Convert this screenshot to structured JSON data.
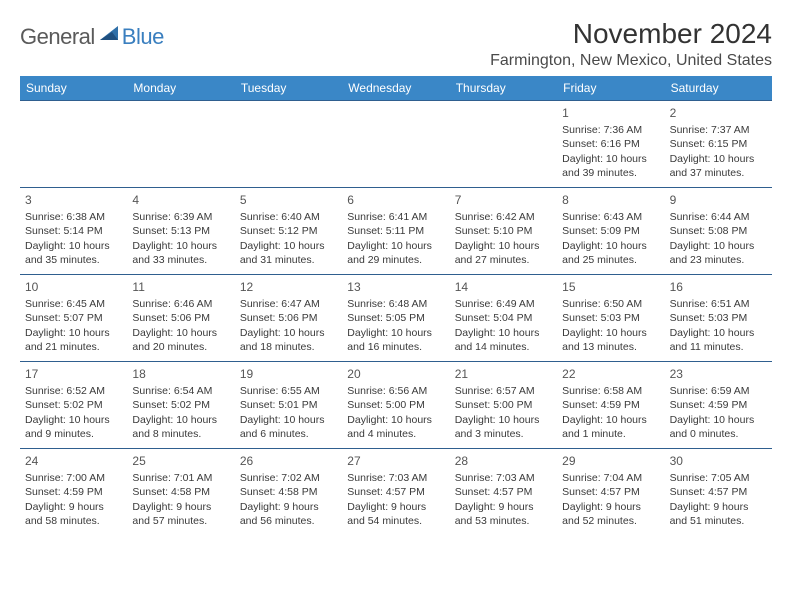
{
  "logo": {
    "general": "General",
    "blue": "Blue"
  },
  "header": {
    "month_title": "November 2024",
    "location": "Farmington, New Mexico, United States"
  },
  "style": {
    "header_bg": "#3a87c7",
    "header_text": "#ffffff",
    "row_border": "#2f5f8f",
    "body_text": "#3a3a3a",
    "logo_gray": "#5a5a5a",
    "logo_blue": "#3a7fbf"
  },
  "weekdays": [
    "Sunday",
    "Monday",
    "Tuesday",
    "Wednesday",
    "Thursday",
    "Friday",
    "Saturday"
  ],
  "weeks": [
    [
      null,
      null,
      null,
      null,
      null,
      {
        "n": "1",
        "sr": "Sunrise: 7:36 AM",
        "ss": "Sunset: 6:16 PM",
        "dl": "Daylight: 10 hours and 39 minutes."
      },
      {
        "n": "2",
        "sr": "Sunrise: 7:37 AM",
        "ss": "Sunset: 6:15 PM",
        "dl": "Daylight: 10 hours and 37 minutes."
      }
    ],
    [
      {
        "n": "3",
        "sr": "Sunrise: 6:38 AM",
        "ss": "Sunset: 5:14 PM",
        "dl": "Daylight: 10 hours and 35 minutes."
      },
      {
        "n": "4",
        "sr": "Sunrise: 6:39 AM",
        "ss": "Sunset: 5:13 PM",
        "dl": "Daylight: 10 hours and 33 minutes."
      },
      {
        "n": "5",
        "sr": "Sunrise: 6:40 AM",
        "ss": "Sunset: 5:12 PM",
        "dl": "Daylight: 10 hours and 31 minutes."
      },
      {
        "n": "6",
        "sr": "Sunrise: 6:41 AM",
        "ss": "Sunset: 5:11 PM",
        "dl": "Daylight: 10 hours and 29 minutes."
      },
      {
        "n": "7",
        "sr": "Sunrise: 6:42 AM",
        "ss": "Sunset: 5:10 PM",
        "dl": "Daylight: 10 hours and 27 minutes."
      },
      {
        "n": "8",
        "sr": "Sunrise: 6:43 AM",
        "ss": "Sunset: 5:09 PM",
        "dl": "Daylight: 10 hours and 25 minutes."
      },
      {
        "n": "9",
        "sr": "Sunrise: 6:44 AM",
        "ss": "Sunset: 5:08 PM",
        "dl": "Daylight: 10 hours and 23 minutes."
      }
    ],
    [
      {
        "n": "10",
        "sr": "Sunrise: 6:45 AM",
        "ss": "Sunset: 5:07 PM",
        "dl": "Daylight: 10 hours and 21 minutes."
      },
      {
        "n": "11",
        "sr": "Sunrise: 6:46 AM",
        "ss": "Sunset: 5:06 PM",
        "dl": "Daylight: 10 hours and 20 minutes."
      },
      {
        "n": "12",
        "sr": "Sunrise: 6:47 AM",
        "ss": "Sunset: 5:06 PM",
        "dl": "Daylight: 10 hours and 18 minutes."
      },
      {
        "n": "13",
        "sr": "Sunrise: 6:48 AM",
        "ss": "Sunset: 5:05 PM",
        "dl": "Daylight: 10 hours and 16 minutes."
      },
      {
        "n": "14",
        "sr": "Sunrise: 6:49 AM",
        "ss": "Sunset: 5:04 PM",
        "dl": "Daylight: 10 hours and 14 minutes."
      },
      {
        "n": "15",
        "sr": "Sunrise: 6:50 AM",
        "ss": "Sunset: 5:03 PM",
        "dl": "Daylight: 10 hours and 13 minutes."
      },
      {
        "n": "16",
        "sr": "Sunrise: 6:51 AM",
        "ss": "Sunset: 5:03 PM",
        "dl": "Daylight: 10 hours and 11 minutes."
      }
    ],
    [
      {
        "n": "17",
        "sr": "Sunrise: 6:52 AM",
        "ss": "Sunset: 5:02 PM",
        "dl": "Daylight: 10 hours and 9 minutes."
      },
      {
        "n": "18",
        "sr": "Sunrise: 6:54 AM",
        "ss": "Sunset: 5:02 PM",
        "dl": "Daylight: 10 hours and 8 minutes."
      },
      {
        "n": "19",
        "sr": "Sunrise: 6:55 AM",
        "ss": "Sunset: 5:01 PM",
        "dl": "Daylight: 10 hours and 6 minutes."
      },
      {
        "n": "20",
        "sr": "Sunrise: 6:56 AM",
        "ss": "Sunset: 5:00 PM",
        "dl": "Daylight: 10 hours and 4 minutes."
      },
      {
        "n": "21",
        "sr": "Sunrise: 6:57 AM",
        "ss": "Sunset: 5:00 PM",
        "dl": "Daylight: 10 hours and 3 minutes."
      },
      {
        "n": "22",
        "sr": "Sunrise: 6:58 AM",
        "ss": "Sunset: 4:59 PM",
        "dl": "Daylight: 10 hours and 1 minute."
      },
      {
        "n": "23",
        "sr": "Sunrise: 6:59 AM",
        "ss": "Sunset: 4:59 PM",
        "dl": "Daylight: 10 hours and 0 minutes."
      }
    ],
    [
      {
        "n": "24",
        "sr": "Sunrise: 7:00 AM",
        "ss": "Sunset: 4:59 PM",
        "dl": "Daylight: 9 hours and 58 minutes."
      },
      {
        "n": "25",
        "sr": "Sunrise: 7:01 AM",
        "ss": "Sunset: 4:58 PM",
        "dl": "Daylight: 9 hours and 57 minutes."
      },
      {
        "n": "26",
        "sr": "Sunrise: 7:02 AM",
        "ss": "Sunset: 4:58 PM",
        "dl": "Daylight: 9 hours and 56 minutes."
      },
      {
        "n": "27",
        "sr": "Sunrise: 7:03 AM",
        "ss": "Sunset: 4:57 PM",
        "dl": "Daylight: 9 hours and 54 minutes."
      },
      {
        "n": "28",
        "sr": "Sunrise: 7:03 AM",
        "ss": "Sunset: 4:57 PM",
        "dl": "Daylight: 9 hours and 53 minutes."
      },
      {
        "n": "29",
        "sr": "Sunrise: 7:04 AM",
        "ss": "Sunset: 4:57 PM",
        "dl": "Daylight: 9 hours and 52 minutes."
      },
      {
        "n": "30",
        "sr": "Sunrise: 7:05 AM",
        "ss": "Sunset: 4:57 PM",
        "dl": "Daylight: 9 hours and 51 minutes."
      }
    ]
  ]
}
